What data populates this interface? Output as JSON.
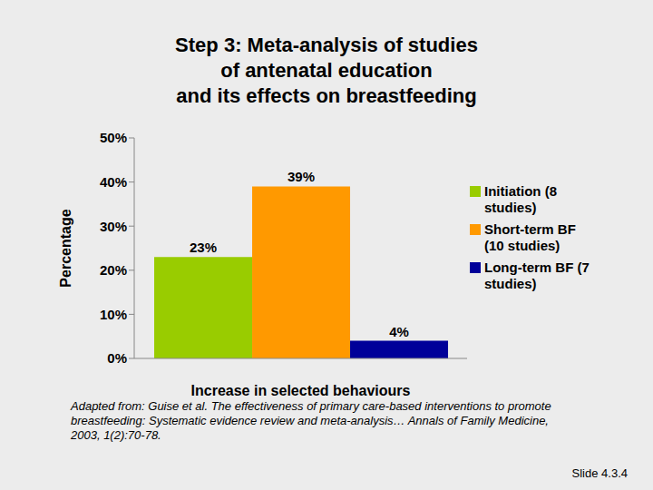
{
  "chart_data": {
    "type": "bar",
    "title": "Step 3: Meta-analysis of studies\nof antenatal education\nand its effects on breastfeeding",
    "x_label": "Increase in selected behaviours",
    "y_label": "Percentage",
    "categories": [
      null
    ],
    "series": [
      {
        "name": "Initiation (8 studies)",
        "color": "#99cc00",
        "values": [
          23
        ],
        "value_labels": [
          "23%"
        ]
      },
      {
        "name": "Short-term BF (10 studies)",
        "color": "#ff9900",
        "values": [
          39
        ],
        "value_labels": [
          "39%"
        ]
      },
      {
        "name": "Long-term BF (7 studies)",
        "color": "#000099",
        "values": [
          4
        ],
        "value_labels": [
          "4%"
        ]
      }
    ],
    "ylim": [
      0,
      50
    ],
    "yticks": [
      {
        "value": 0,
        "label": "0%"
      },
      {
        "value": 10,
        "label": "10%"
      },
      {
        "value": 20,
        "label": "20%"
      },
      {
        "value": 30,
        "label": "30%"
      },
      {
        "value": 40,
        "label": "40%"
      },
      {
        "value": 50,
        "label": "50%"
      }
    ],
    "grid": false,
    "legend": "right",
    "data_labels": true,
    "annotations": [
      "Adapted from: Guise et al. The effectiveness of primary care-based interventions to promote breastfeeding: Systematic evidence review and meta-analysis… Annals of Family Medicine, 2003, 1(2):70-78.",
      "Slide 4.3.4"
    ]
  }
}
